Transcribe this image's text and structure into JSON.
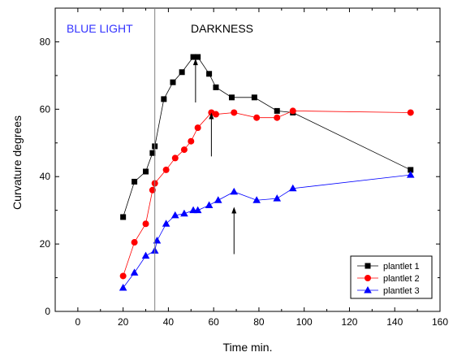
{
  "chart_data": {
    "type": "line",
    "title": "",
    "xlabel": "Time min.",
    "ylabel": "Curvature degrees",
    "xlim": [
      -10,
      160
    ],
    "ylim": [
      0,
      90
    ],
    "xticks": [
      0,
      20,
      40,
      60,
      80,
      100,
      120,
      140,
      160
    ],
    "yticks": [
      0,
      20,
      40,
      60,
      80
    ],
    "grid": false,
    "legend_position": "bottom-right",
    "annotations": {
      "blue_light": "BLUE LIGHT",
      "darkness": "DARKNESS",
      "blue_light_color": "#3333ff",
      "darkness_color": "#000000",
      "divider_x": 34
    },
    "arrows": [
      {
        "x": 52,
        "y_from": 62,
        "y_to": 75
      },
      {
        "x": 59,
        "y_from": 46,
        "y_to": 59
      },
      {
        "x": 69,
        "y_from": 17,
        "y_to": 31
      }
    ],
    "series": [
      {
        "name": "plantlet 1",
        "color": "#000000",
        "marker": "square",
        "x": [
          20,
          25,
          30,
          33,
          34,
          38,
          42,
          46,
          51,
          53,
          58,
          61,
          68,
          78,
          88,
          95,
          147
        ],
        "y": [
          28,
          38.5,
          41.5,
          47,
          49,
          63,
          68,
          71,
          75.5,
          75.5,
          70.5,
          66.5,
          63.5,
          63.5,
          59.5,
          59,
          42
        ]
      },
      {
        "name": "plantlet 2",
        "color": "#ff0000",
        "marker": "circle",
        "x": [
          20,
          25,
          30,
          33,
          34,
          39,
          43,
          47,
          50,
          53,
          59,
          61,
          69,
          79,
          88,
          95,
          147
        ],
        "y": [
          10.5,
          20.5,
          26,
          36,
          38,
          42,
          45.5,
          48,
          50.5,
          54.5,
          59,
          58.5,
          59,
          57.5,
          57.5,
          59.5,
          59
        ]
      },
      {
        "name": "plantlet 3",
        "color": "#0000ff",
        "marker": "triangle",
        "x": [
          20,
          25,
          30,
          34,
          35,
          39,
          43,
          47,
          51,
          53,
          58,
          62,
          69,
          79,
          88,
          95,
          147
        ],
        "y": [
          7,
          11.5,
          16.5,
          18,
          21,
          26,
          28.5,
          29,
          30,
          30,
          31.5,
          33,
          35.5,
          33,
          33.5,
          36.5,
          40.5
        ]
      }
    ]
  }
}
